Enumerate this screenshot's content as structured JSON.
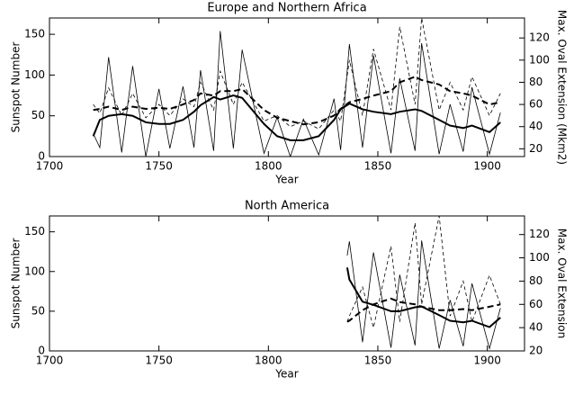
{
  "chart_data": [
    {
      "type": "line",
      "title": "Europe and Northern Africa",
      "x_label": "Year",
      "y_label": "Sunspot Number",
      "y2_label": "Max. Oval Extension (Mkm2)",
      "x": [
        1720,
        1723,
        1727,
        1733,
        1738,
        1744,
        1750,
        1755,
        1761,
        1766,
        1769,
        1775,
        1778,
        1784,
        1788,
        1798,
        1804,
        1810,
        1816,
        1823,
        1830,
        1833,
        1837,
        1843,
        1848,
        1856,
        1860,
        1867,
        1870,
        1878,
        1883,
        1889,
        1893,
        1901,
        1906
      ],
      "series": [
        {
          "color": "#000000",
          "style": "solid",
          "linewidth": 0.8,
          "values": [
            28,
            11,
            122,
            5,
            111,
            0,
            83,
            10,
            86,
            11,
            106,
            7,
            154,
            10,
            131,
            4,
            48,
            0,
            46,
            2,
            71,
            8,
            138,
            11,
            124,
            4,
            96,
            7,
            139,
            3,
            64,
            6,
            85,
            3,
            54
          ]
        },
        {
          "color": "#000000",
          "style": "solid",
          "linewidth": 2,
          "values": [
            25,
            45,
            50,
            52,
            50,
            42,
            40,
            40,
            45,
            55,
            63,
            73,
            70,
            75,
            72,
            40,
            25,
            20,
            20,
            25,
            45,
            58,
            65,
            58,
            55,
            52,
            55,
            58,
            56,
            45,
            38,
            35,
            38,
            30,
            42
          ]
        },
        {
          "color": "#000000",
          "style": "dashed",
          "linewidth": 0.8,
          "axis": "y2",
          "values": [
            60,
            52,
            75,
            50,
            70,
            48,
            60,
            50,
            65,
            58,
            80,
            55,
            90,
            60,
            80,
            45,
            50,
            40,
            45,
            38,
            55,
            45,
            100,
            50,
            110,
            55,
            130,
            60,
            138,
            55,
            80,
            55,
            85,
            50,
            70
          ]
        },
        {
          "color": "#000000",
          "style": "dashed",
          "linewidth": 2,
          "axis": "y2",
          "values": [
            55,
            56,
            58,
            55,
            58,
            56,
            57,
            56,
            60,
            64,
            70,
            68,
            72,
            72,
            74,
            55,
            48,
            45,
            42,
            44,
            50,
            56,
            62,
            65,
            68,
            72,
            80,
            85,
            82,
            78,
            72,
            70,
            68,
            60,
            62
          ]
        }
      ],
      "xlim": [
        1700,
        1917
      ],
      "xticks": [
        1700,
        1750,
        1800,
        1850,
        1900
      ],
      "ylim": [
        0,
        170
      ],
      "yticks": [
        0,
        50,
        100,
        150
      ],
      "y2lim": [
        13,
        138
      ],
      "y2ticks": [
        20,
        40,
        60,
        80,
        100,
        120
      ]
    },
    {
      "type": "line",
      "title": "North America",
      "x_label": "Year",
      "y_label": "Sunspot Number",
      "y2_label": "Max. Oval Extension",
      "x": [
        1836,
        1837,
        1843,
        1848,
        1856,
        1860,
        1867,
        1870,
        1878,
        1883,
        1889,
        1893,
        1901,
        1906
      ],
      "series": [
        {
          "color": "#000000",
          "style": "solid",
          "linewidth": 0.8,
          "values": [
            120,
            138,
            11,
            124,
            4,
            96,
            7,
            139,
            3,
            64,
            6,
            85,
            3,
            54
          ]
        },
        {
          "color": "#000000",
          "style": "solid",
          "linewidth": 2,
          "values": [
            105,
            90,
            62,
            58,
            50,
            50,
            55,
            56,
            45,
            38,
            36,
            38,
            30,
            42
          ]
        },
        {
          "color": "#000000",
          "style": "dashed",
          "linewidth": 0.8,
          "axis": "y2",
          "values": [
            45,
            50,
            75,
            40,
            110,
            45,
            130,
            60,
            136,
            50,
            80,
            45,
            85,
            60
          ]
        },
        {
          "color": "#000000",
          "style": "dashed",
          "linewidth": 2,
          "axis": "y2",
          "values": [
            45,
            46,
            55,
            60,
            65,
            62,
            60,
            58,
            55,
            55,
            56,
            55,
            58,
            60
          ]
        }
      ],
      "xlim": [
        1700,
        1917
      ],
      "xticks": [
        1700,
        1750,
        1800,
        1850,
        1900
      ],
      "ylim": [
        0,
        170
      ],
      "yticks": [
        0,
        50,
        100,
        150
      ],
      "y2lim": [
        20,
        136
      ],
      "y2ticks": [
        20,
        40,
        60,
        80,
        100,
        120
      ]
    }
  ]
}
